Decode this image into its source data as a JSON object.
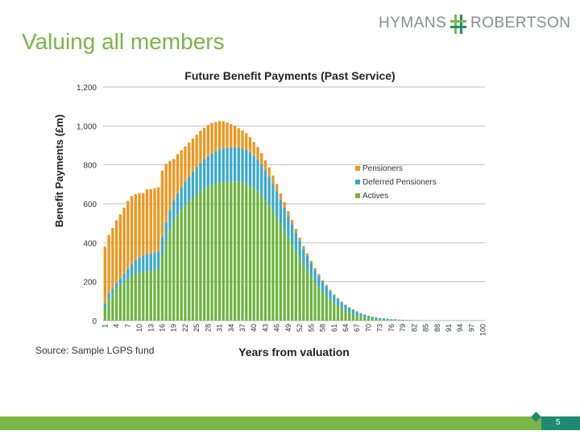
{
  "slide": {
    "title": "Valuing all members",
    "source": "Source: Sample LGPS fund",
    "page_number": "5"
  },
  "logo": {
    "left_text": "HYMANS",
    "right_text": "ROBERTSON",
    "colors": [
      "#7ab648",
      "#1f8a70",
      "#8a8d91"
    ]
  },
  "colors": {
    "pensioners": "#f0961e",
    "deferred": "#3aa8cf",
    "actives": "#6cb33f",
    "title_green": "#7ab648",
    "footer_teal": "#1f8a70"
  },
  "chart_data": {
    "type": "bar",
    "stacked": true,
    "title": "Future Benefit Payments (Past Service)",
    "xlabel": "Years from  valuation",
    "ylabel": "Benefit Payments (£m)",
    "ylim": [
      0,
      1200
    ],
    "yticks": [
      0,
      200,
      400,
      600,
      800,
      1000,
      1200
    ],
    "ytick_labels": [
      "0",
      "200",
      "400",
      "600",
      "800",
      "1,000",
      "1,200"
    ],
    "xtick_labels": [
      "1",
      "4",
      "7",
      "10",
      "13",
      "16",
      "19",
      "22",
      "25",
      "28",
      "31",
      "34",
      "37",
      "40",
      "43",
      "46",
      "49",
      "52",
      "55",
      "58",
      "61",
      "64",
      "67",
      "70",
      "73",
      "76",
      "79",
      "82",
      "85",
      "88",
      "91",
      "94",
      "97",
      "100"
    ],
    "grid": true,
    "legend_position": "right",
    "categories_start": 1,
    "categories_end": 100,
    "series": [
      {
        "name": "Actives",
        "values": [
          60,
          110,
          135,
          165,
          185,
          200,
          215,
          230,
          240,
          245,
          250,
          255,
          255,
          260,
          265,
          340,
          410,
          470,
          515,
          545,
          570,
          595,
          615,
          635,
          650,
          665,
          680,
          690,
          700,
          705,
          710,
          712,
          714,
          715,
          715,
          713,
          710,
          705,
          695,
          680,
          665,
          645,
          620,
          595,
          565,
          535,
          500,
          465,
          430,
          395,
          360,
          325,
          290,
          260,
          230,
          200,
          175,
          150,
          130,
          110,
          92,
          77,
          64,
          52,
          42,
          34,
          27,
          21,
          16,
          12,
          9,
          7,
          5,
          4,
          3,
          2,
          2,
          1,
          1,
          1,
          1,
          0,
          0,
          0,
          0,
          0,
          0,
          0,
          0,
          0,
          0,
          0,
          0,
          0,
          0,
          0,
          0,
          0,
          0,
          0
        ]
      },
      {
        "name": "Deferred Pensioners",
        "values": [
          30,
          30,
          30,
          30,
          30,
          40,
          50,
          60,
          70,
          80,
          85,
          90,
          90,
          90,
          90,
          90,
          95,
          100,
          105,
          110,
          115,
          120,
          125,
          130,
          140,
          145,
          150,
          155,
          160,
          165,
          170,
          172,
          174,
          175,
          175,
          175,
          175,
          173,
          170,
          167,
          163,
          158,
          152,
          145,
          138,
          130,
          122,
          115,
          107,
          100,
          92,
          85,
          78,
          72,
          66,
          60,
          55,
          50,
          46,
          42,
          38,
          34,
          30,
          27,
          24,
          21,
          18,
          16,
          14,
          12,
          10,
          9,
          8,
          7,
          6,
          5,
          4,
          3,
          3,
          2,
          2,
          2,
          2,
          1,
          1,
          1,
          1,
          1,
          1,
          1,
          1,
          1,
          1,
          1,
          1,
          1,
          1,
          1,
          1,
          1
        ]
      },
      {
        "name": "Pensioners",
        "values": [
          290,
          300,
          310,
          320,
          330,
          340,
          350,
          350,
          340,
          330,
          320,
          330,
          330,
          330,
          330,
          340,
          300,
          250,
          210,
          200,
          190,
          180,
          175,
          170,
          165,
          165,
          160,
          160,
          155,
          150,
          145,
          140,
          130,
          120,
          110,
          100,
          92,
          85,
          78,
          70,
          64,
          58,
          52,
          47,
          42,
          37,
          32,
          28,
          25,
          22,
          19,
          17,
          15,
          13,
          11,
          10,
          9,
          8,
          7,
          6,
          5,
          5,
          4,
          4,
          3,
          3,
          3,
          2,
          2,
          2,
          2,
          2,
          1,
          1,
          1,
          1,
          1,
          1,
          1,
          1,
          0,
          0,
          0,
          0,
          0,
          0,
          0,
          0,
          0,
          0,
          0,
          0,
          0,
          0,
          0,
          0,
          0,
          0,
          0,
          0
        ]
      }
    ],
    "legend": [
      "Pensioners",
      "Deferred Pensioners",
      "Actives"
    ]
  }
}
